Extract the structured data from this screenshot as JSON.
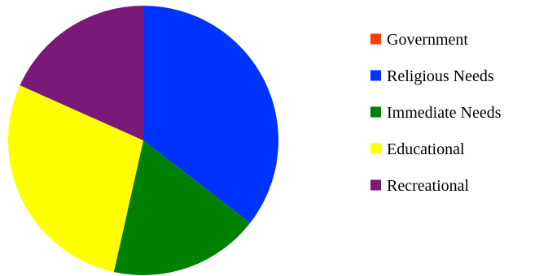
{
  "chart_data": {
    "type": "pie",
    "title": "",
    "slices": [
      {
        "label": "Government",
        "value": 0.0,
        "color": "#ff3b00"
      },
      {
        "label": "Religious Needs",
        "value": 35.5,
        "color": "#0033ff"
      },
      {
        "label": "Immediate Needs",
        "value": 18.0,
        "color": "#008000"
      },
      {
        "label": "Educational",
        "value": 28.2,
        "color": "#ffff00"
      },
      {
        "label": "Recreational",
        "value": 18.3,
        "color": "#7a1a78"
      }
    ],
    "start_angle_deg": -90,
    "direction": "clockwise",
    "legend": {
      "position": "right"
    }
  }
}
